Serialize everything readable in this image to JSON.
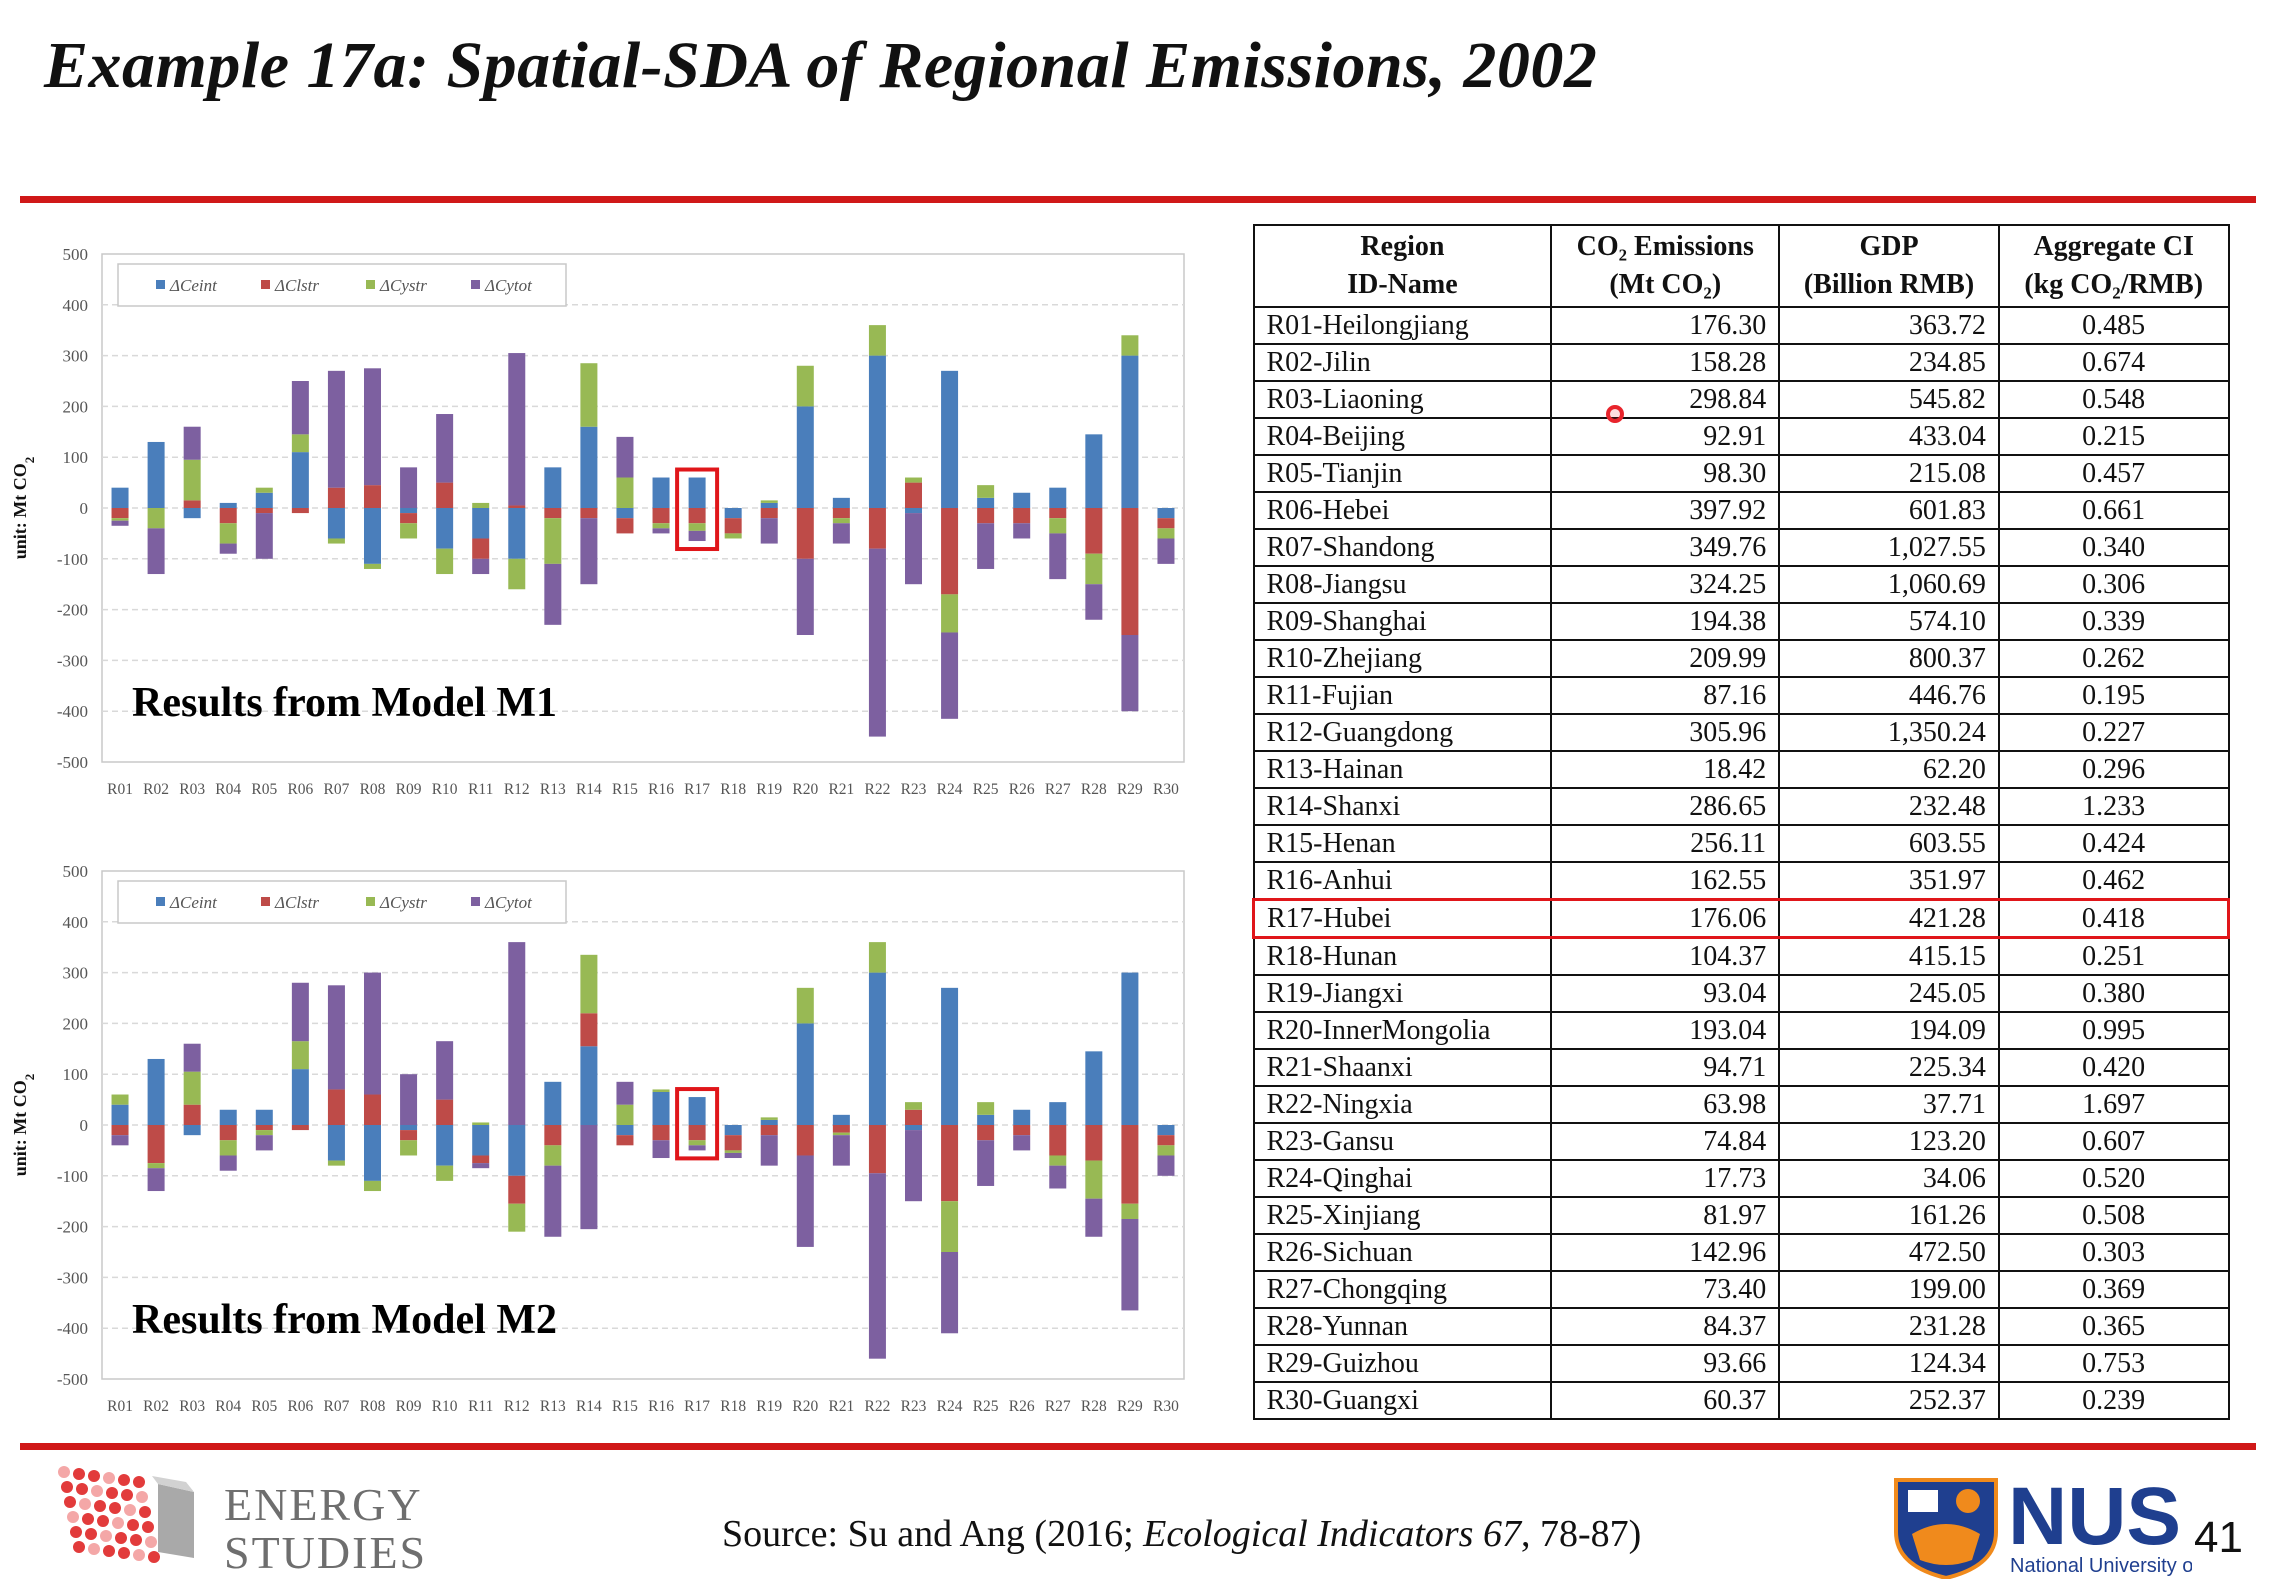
{
  "slide": {
    "title": "Example 17a: Spatial-SDA of Regional Emissions, 2002",
    "page_number": "41",
    "source_prefix": "Source: Su and Ang (2016; ",
    "source_journal": "Ecological Indicators 67",
    "source_suffix": ", 78-87)"
  },
  "logos": {
    "energy_line1": "ENERGY",
    "energy_line2": "STUDIES",
    "nus_text": "NUS",
    "nus_sub": "National University of Singapore"
  },
  "colors": {
    "ceint": "#4a7ebb",
    "clstr": "#be4b48",
    "cystr": "#98b954",
    "cytot": "#7d60a0",
    "accent_red": "#d01818"
  },
  "chart_data": [
    {
      "type": "bar",
      "stacked": true,
      "caption": "Results from Model M1",
      "ylabel": "unit: Mt CO2",
      "ylim": [
        -500,
        500
      ],
      "yticks": [
        500,
        400,
        300,
        200,
        100,
        0,
        -100,
        -200,
        -300,
        -400,
        -500
      ],
      "grid": true,
      "legend": "top-left",
      "highlight_category": "R17",
      "categories": [
        "R01",
        "R02",
        "R03",
        "R04",
        "R05",
        "R06",
        "R07",
        "R08",
        "R09",
        "R10",
        "R11",
        "R12",
        "R13",
        "R14",
        "R15",
        "R16",
        "R17",
        "R18",
        "R19",
        "R20",
        "R21",
        "R22",
        "R23",
        "R24",
        "R25",
        "R26",
        "R27",
        "R28",
        "R29",
        "R30"
      ],
      "series": [
        {
          "name": "ΔCeint",
          "values": [
            40,
            130,
            -20,
            10,
            30,
            110,
            -60,
            -110,
            -10,
            -80,
            -60,
            -100,
            80,
            160,
            -20,
            60,
            60,
            -20,
            10,
            200,
            20,
            300,
            -10,
            270,
            20,
            30,
            40,
            145,
            300,
            -20
          ]
        },
        {
          "name": "ΔClstr",
          "values": [
            -20,
            0,
            15,
            -30,
            -10,
            -10,
            40,
            45,
            -20,
            50,
            -40,
            5,
            -20,
            -20,
            -30,
            -30,
            -30,
            -30,
            -20,
            -100,
            -20,
            -80,
            50,
            -170,
            -30,
            -30,
            -20,
            -90,
            -250,
            -20
          ]
        },
        {
          "name": "ΔCystr",
          "values": [
            -5,
            -40,
            80,
            -40,
            10,
            35,
            -10,
            -10,
            -30,
            -50,
            10,
            -60,
            -90,
            125,
            60,
            -10,
            -15,
            -10,
            5,
            80,
            -10,
            60,
            10,
            -75,
            25,
            0,
            -30,
            -60,
            40,
            -20
          ]
        },
        {
          "name": "ΔCytot",
          "values": [
            -10,
            -90,
            65,
            -20,
            -90,
            105,
            230,
            230,
            80,
            135,
            -30,
            300,
            -120,
            -130,
            80,
            -10,
            -20,
            0,
            -50,
            -150,
            -40,
            -370,
            -140,
            -170,
            -90,
            -30,
            -90,
            -70,
            -150,
            -50
          ]
        }
      ]
    },
    {
      "type": "bar",
      "stacked": true,
      "caption": "Results from Model M2",
      "ylabel": "unit: Mt CO2",
      "ylim": [
        -500,
        500
      ],
      "yticks": [
        500,
        400,
        300,
        200,
        100,
        0,
        -100,
        -200,
        -300,
        -400,
        -500
      ],
      "grid": true,
      "legend": "top-left",
      "highlight_category": "R17",
      "categories": [
        "R01",
        "R02",
        "R03",
        "R04",
        "R05",
        "R06",
        "R07",
        "R08",
        "R09",
        "R10",
        "R11",
        "R12",
        "R13",
        "R14",
        "R15",
        "R16",
        "R17",
        "R18",
        "R19",
        "R20",
        "R21",
        "R22",
        "R23",
        "R24",
        "R25",
        "R26",
        "R27",
        "R28",
        "R29",
        "R30"
      ],
      "series": [
        {
          "name": "ΔCeint",
          "values": [
            40,
            130,
            -20,
            30,
            30,
            110,
            -70,
            -110,
            -10,
            -80,
            -60,
            -100,
            85,
            155,
            -20,
            65,
            55,
            -20,
            10,
            200,
            20,
            300,
            -10,
            270,
            20,
            30,
            45,
            145,
            300,
            -20
          ]
        },
        {
          "name": "ΔClstr",
          "values": [
            -20,
            -75,
            40,
            -30,
            -10,
            -10,
            70,
            60,
            -20,
            50,
            -15,
            -55,
            -40,
            65,
            -20,
            -30,
            -30,
            -30,
            -20,
            -60,
            -15,
            -95,
            30,
            -150,
            -30,
            -20,
            -60,
            -70,
            -155,
            -20
          ]
        },
        {
          "name": "ΔCystr",
          "values": [
            20,
            -10,
            65,
            -30,
            -10,
            55,
            -10,
            -20,
            -30,
            -30,
            5,
            -55,
            -40,
            115,
            40,
            5,
            -10,
            -5,
            5,
            70,
            -5,
            60,
            15,
            -100,
            25,
            0,
            -20,
            -75,
            -30,
            -20
          ]
        },
        {
          "name": "ΔCytot",
          "values": [
            -20,
            -45,
            55,
            -30,
            -30,
            115,
            205,
            240,
            100,
            115,
            -10,
            360,
            -140,
            -205,
            45,
            -35,
            -10,
            -10,
            -60,
            -180,
            -60,
            -365,
            -140,
            -160,
            -90,
            -30,
            -45,
            -75,
            -180,
            -40
          ]
        }
      ]
    }
  ],
  "table": {
    "headers": [
      {
        "line1": "Region",
        "line2": "ID-Name"
      },
      {
        "line1": "CO₂ Emissions",
        "line2": "(Mt CO₂)"
      },
      {
        "line1": "GDP",
        "line2": "(Billion RMB)"
      },
      {
        "line1": "Aggregate CI",
        "line2": "(kg CO₂/RMB)"
      }
    ],
    "highlight_row": 16,
    "rows": [
      [
        "R01-Heilongjiang",
        "176.30",
        "363.72",
        "0.485"
      ],
      [
        "R02-Jilin",
        "158.28",
        "234.85",
        "0.674"
      ],
      [
        "R03-Liaoning",
        "298.84",
        "545.82",
        "0.548"
      ],
      [
        "R04-Beijing",
        "92.91",
        "433.04",
        "0.215"
      ],
      [
        "R05-Tianjin",
        "98.30",
        "215.08",
        "0.457"
      ],
      [
        "R06-Hebei",
        "397.92",
        "601.83",
        "0.661"
      ],
      [
        "R07-Shandong",
        "349.76",
        "1,027.55",
        "0.340"
      ],
      [
        "R08-Jiangsu",
        "324.25",
        "1,060.69",
        "0.306"
      ],
      [
        "R09-Shanghai",
        "194.38",
        "574.10",
        "0.339"
      ],
      [
        "R10-Zhejiang",
        "209.99",
        "800.37",
        "0.262"
      ],
      [
        "R11-Fujian",
        "87.16",
        "446.76",
        "0.195"
      ],
      [
        "R12-Guangdong",
        "305.96",
        "1,350.24",
        "0.227"
      ],
      [
        "R13-Hainan",
        "18.42",
        "62.20",
        "0.296"
      ],
      [
        "R14-Shanxi",
        "286.65",
        "232.48",
        "1.233"
      ],
      [
        "R15-Henan",
        "256.11",
        "603.55",
        "0.424"
      ],
      [
        "R16-Anhui",
        "162.55",
        "351.97",
        "0.462"
      ],
      [
        "R17-Hubei",
        "176.06",
        "421.28",
        "0.418"
      ],
      [
        "R18-Hunan",
        "104.37",
        "415.15",
        "0.251"
      ],
      [
        "R19-Jiangxi",
        "93.04",
        "245.05",
        "0.380"
      ],
      [
        "R20-InnerMongolia",
        "193.04",
        "194.09",
        "0.995"
      ],
      [
        "R21-Shaanxi",
        "94.71",
        "225.34",
        "0.420"
      ],
      [
        "R22-Ningxia",
        "63.98",
        "37.71",
        "1.697"
      ],
      [
        "R23-Gansu",
        "74.84",
        "123.20",
        "0.607"
      ],
      [
        "R24-Qinghai",
        "17.73",
        "34.06",
        "0.520"
      ],
      [
        "R25-Xinjiang",
        "81.97",
        "161.26",
        "0.508"
      ],
      [
        "R26-Sichuan",
        "142.96",
        "472.50",
        "0.303"
      ],
      [
        "R27-Chongqing",
        "73.40",
        "199.00",
        "0.369"
      ],
      [
        "R28-Yunnan",
        "84.37",
        "231.28",
        "0.365"
      ],
      [
        "R29-Guizhou",
        "93.66",
        "124.34",
        "0.753"
      ],
      [
        "R30-Guangxi",
        "60.37",
        "252.37",
        "0.239"
      ]
    ]
  }
}
